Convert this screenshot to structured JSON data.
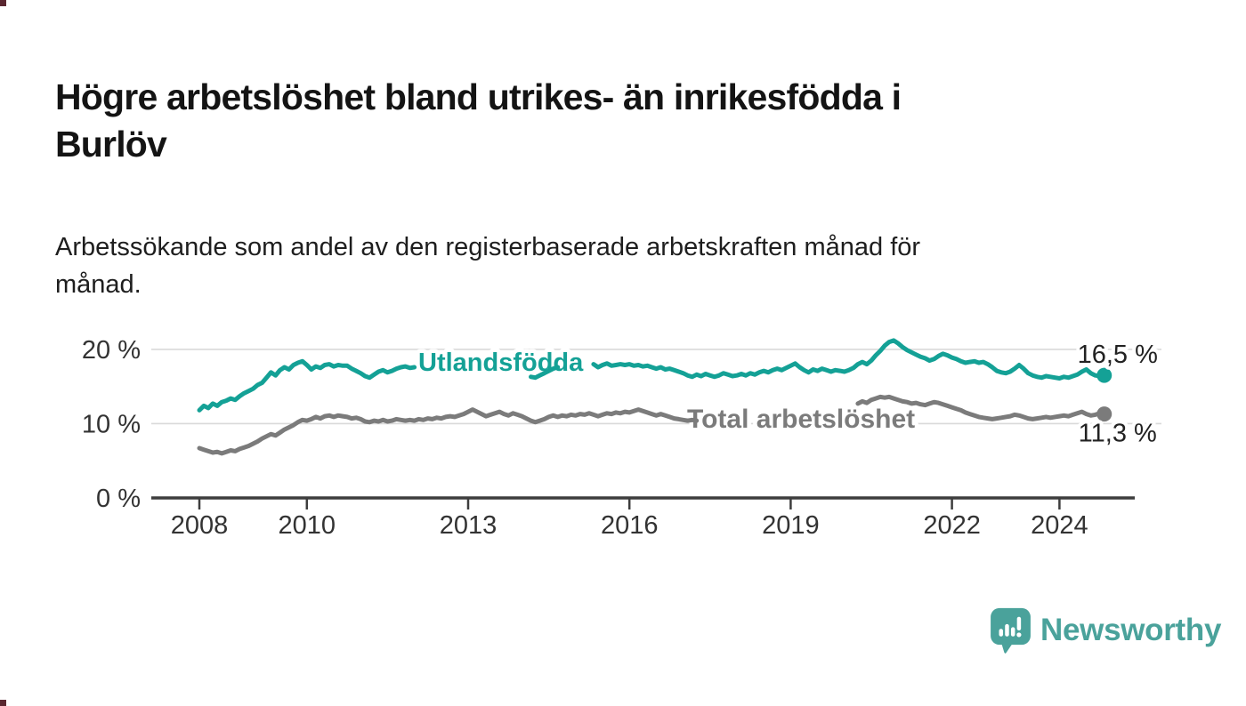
{
  "page_title_lines": [
    "Högre arbetslöshet bland utrikes- än inrikesfödda i",
    "Burlöv"
  ],
  "subtitle_lines": [
    "Arbetssökande som andel av den registerbaserade arbetskraften månad för",
    "månad."
  ],
  "branding": {
    "name": "Newsworthy",
    "icon": "speech-bubble-bar-chart-icon",
    "color": "#4aa29b"
  },
  "chart_data": {
    "type": "line",
    "unit": "percent",
    "frequency": "monthly",
    "start": "2008-01",
    "end": "2024-11",
    "grid": "horizontal",
    "x_axis": {
      "tick_years": [
        2008,
        2010,
        2013,
        2016,
        2019,
        2022,
        2024
      ],
      "tick_labels": [
        "2008",
        "2010",
        "2013",
        "2016",
        "2019",
        "2022",
        "2024"
      ]
    },
    "y_axis": {
      "tick_values": [
        0,
        10,
        20
      ],
      "tick_labels": [
        "0 %",
        "10 %",
        "20 %"
      ],
      "ylim": [
        0,
        22.5
      ]
    },
    "colors": {
      "foreign_born": "#14a196",
      "total": "#7b7b7b",
      "value_label": "#222222"
    },
    "series": [
      {
        "name": "Utlandsfödda",
        "color": "#14a196",
        "end_value": 16.5,
        "end_value_label": "16,5 %",
        "values": [
          11.8,
          12.4,
          12.1,
          12.7,
          12.4,
          12.9,
          13.1,
          13.4,
          13.2,
          13.7,
          14.1,
          14.4,
          14.7,
          15.2,
          15.5,
          16.2,
          16.9,
          16.5,
          17.2,
          17.6,
          17.3,
          17.9,
          18.2,
          18.4,
          17.9,
          17.3,
          17.7,
          17.5,
          17.9,
          18.0,
          17.7,
          17.9,
          17.8,
          17.8,
          17.4,
          17.1,
          16.8,
          16.4,
          16.2,
          16.6,
          17.0,
          17.2,
          16.9,
          17.1,
          17.4,
          17.6,
          17.7,
          17.5,
          17.6,
          17.8,
          17.7,
          17.5,
          17.7,
          17.6,
          17.8,
          17.7,
          17.9,
          17.8,
          17.6,
          17.7,
          17.8,
          18.0,
          17.9,
          18.1,
          18.0,
          17.8,
          17.9,
          18.1,
          18.0,
          17.8,
          17.6,
          17.5,
          16.9,
          16.6,
          16.3,
          16.2,
          16.5,
          16.8,
          17.1,
          17.4,
          17.6,
          17.8,
          18.0,
          18.1,
          18.2,
          18.0,
          18.3,
          18.5,
          18.0,
          17.6,
          17.9,
          18.1,
          17.8,
          17.9,
          18.0,
          17.9,
          18.0,
          17.8,
          17.9,
          17.7,
          17.8,
          17.6,
          17.4,
          17.6,
          17.3,
          17.4,
          17.2,
          17.0,
          16.8,
          16.5,
          16.3,
          16.6,
          16.4,
          16.7,
          16.5,
          16.3,
          16.5,
          16.8,
          16.6,
          16.4,
          16.5,
          16.7,
          16.5,
          16.8,
          16.6,
          16.9,
          17.1,
          16.9,
          17.2,
          17.4,
          17.2,
          17.5,
          17.8,
          18.1,
          17.6,
          17.2,
          16.9,
          17.3,
          17.1,
          17.4,
          17.2,
          17.0,
          17.2,
          17.1,
          17.0,
          17.2,
          17.5,
          18.0,
          18.3,
          18.0,
          18.5,
          19.2,
          19.8,
          20.5,
          21.0,
          21.2,
          20.8,
          20.3,
          19.9,
          19.6,
          19.3,
          19.0,
          18.8,
          18.5,
          18.7,
          19.1,
          19.4,
          19.2,
          18.9,
          18.7,
          18.4,
          18.2,
          18.3,
          18.4,
          18.2,
          18.3,
          18.0,
          17.6,
          17.1,
          16.9,
          16.8,
          17.0,
          17.4,
          17.9,
          17.4,
          16.8,
          16.5,
          16.3,
          16.2,
          16.4,
          16.3,
          16.2,
          16.1,
          16.3,
          16.2,
          16.4,
          16.6,
          17.0,
          17.3,
          16.8,
          16.5,
          16.4,
          16.5
        ]
      },
      {
        "name": "Total arbetslöshet",
        "color": "#7b7b7b",
        "end_value": 11.3,
        "end_value_label": "11,3 %",
        "values": [
          6.7,
          6.5,
          6.3,
          6.1,
          6.2,
          6.0,
          6.2,
          6.4,
          6.3,
          6.6,
          6.8,
          7.0,
          7.3,
          7.6,
          8.0,
          8.3,
          8.6,
          8.4,
          8.8,
          9.2,
          9.5,
          9.8,
          10.2,
          10.5,
          10.4,
          10.6,
          10.9,
          10.7,
          11.0,
          11.1,
          10.9,
          11.1,
          11.0,
          10.9,
          10.7,
          10.8,
          10.6,
          10.3,
          10.2,
          10.4,
          10.3,
          10.5,
          10.3,
          10.4,
          10.6,
          10.5,
          10.4,
          10.5,
          10.4,
          10.6,
          10.5,
          10.7,
          10.6,
          10.8,
          10.7,
          10.9,
          11.0,
          10.9,
          11.1,
          11.3,
          11.6,
          11.9,
          11.6,
          11.3,
          11.0,
          11.2,
          11.4,
          11.6,
          11.3,
          11.1,
          11.4,
          11.2,
          11.0,
          10.7,
          10.4,
          10.2,
          10.4,
          10.6,
          10.9,
          11.1,
          10.9,
          11.1,
          11.0,
          11.2,
          11.1,
          11.3,
          11.2,
          11.4,
          11.2,
          11.0,
          11.2,
          11.4,
          11.3,
          11.5,
          11.4,
          11.6,
          11.5,
          11.7,
          11.9,
          11.7,
          11.5,
          11.3,
          11.1,
          11.3,
          11.1,
          10.9,
          10.7,
          10.6,
          10.5,
          10.4,
          10.5,
          10.4,
          10.3,
          10.4,
          10.5,
          10.4,
          10.5,
          10.6,
          10.5,
          10.4,
          10.3,
          10.2,
          10.3,
          10.2,
          10.1,
          10.2,
          10.3,
          10.2,
          10.3,
          10.4,
          10.3,
          10.4,
          10.4,
          10.5,
          10.4,
          10.5,
          10.6,
          10.5,
          10.6,
          10.7,
          10.8,
          10.9,
          11.0,
          11.2,
          11.5,
          11.8,
          12.2,
          12.7,
          13.0,
          12.8,
          13.2,
          13.4,
          13.6,
          13.5,
          13.6,
          13.4,
          13.2,
          13.0,
          12.9,
          12.7,
          12.8,
          12.6,
          12.5,
          12.7,
          12.9,
          12.8,
          12.6,
          12.4,
          12.2,
          12.0,
          11.8,
          11.5,
          11.3,
          11.1,
          10.9,
          10.8,
          10.7,
          10.6,
          10.7,
          10.8,
          10.9,
          11.0,
          11.2,
          11.1,
          10.9,
          10.7,
          10.6,
          10.7,
          10.8,
          10.9,
          10.8,
          10.9,
          11.0,
          11.1,
          11.0,
          11.2,
          11.4,
          11.6,
          11.3,
          11.1,
          11.2,
          11.4,
          11.3
        ]
      }
    ]
  }
}
